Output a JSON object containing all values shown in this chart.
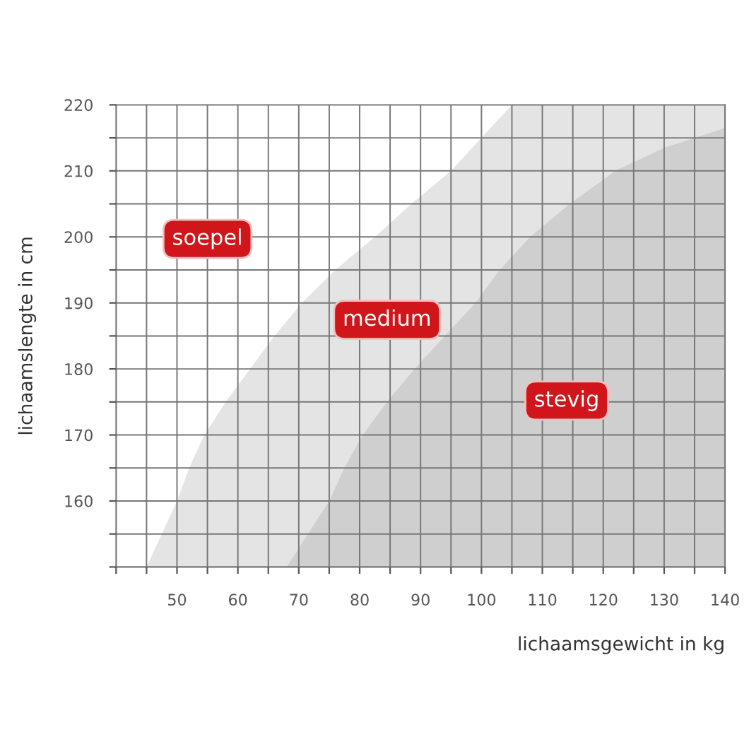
{
  "chart_data": {
    "type": "area",
    "xlabel": "lichaamsgewicht in kg",
    "ylabel": "lichaamslengte in cm",
    "series": [
      {
        "color": "#e4e4e4",
        "x": [
          45,
          47.5,
          50,
          52,
          54.5,
          58,
          62,
          66,
          70.5,
          76,
          82.5,
          88.5,
          95,
          100,
          105,
          140
        ],
        "values": [
          150,
          155,
          160,
          165,
          170,
          175,
          180,
          185,
          190,
          195,
          200,
          205,
          210,
          215,
          220,
          220
        ]
      },
      {
        "color": "#cfcfcf",
        "x": [
          68,
          71.5,
          75,
          77.5,
          80.5,
          84.5,
          89,
          94,
          99,
          103,
          108,
          114.5,
          122,
          130,
          140
        ],
        "values": [
          150,
          155,
          160,
          165,
          170,
          175,
          180,
          185,
          190,
          195,
          200,
          205,
          210,
          213.5,
          216.5
        ]
      }
    ],
    "xlim": [
      40,
      140
    ],
    "ylim": [
      150,
      220
    ],
    "xticks": [
      {
        "value": 40,
        "label": null
      },
      {
        "value": 45,
        "label": null
      },
      50,
      {
        "value": 55,
        "label": null
      },
      60,
      {
        "value": 65,
        "label": null
      },
      70,
      {
        "value": 75,
        "label": null
      },
      80,
      {
        "value": 85,
        "label": null
      },
      90,
      {
        "value": 95,
        "label": null
      },
      100,
      {
        "value": 105,
        "label": null
      },
      110,
      {
        "value": 115,
        "label": null
      },
      120,
      {
        "value": 125,
        "label": null
      },
      130,
      {
        "value": 135,
        "label": null
      },
      140
    ],
    "yticks": [
      {
        "value": 150,
        "label": null
      },
      {
        "value": 155,
        "label": null
      },
      160,
      {
        "value": 165,
        "label": null
      },
      170,
      {
        "value": 175,
        "label": null
      },
      180,
      {
        "value": 185,
        "label": null
      },
      190,
      {
        "value": 195,
        "label": null
      },
      200,
      {
        "value": 205,
        "label": null
      },
      210,
      {
        "value": 215,
        "label": null
      },
      220
    ],
    "grid": true,
    "annotations": [
      "soepel",
      "medium",
      "stevig"
    ]
  }
}
